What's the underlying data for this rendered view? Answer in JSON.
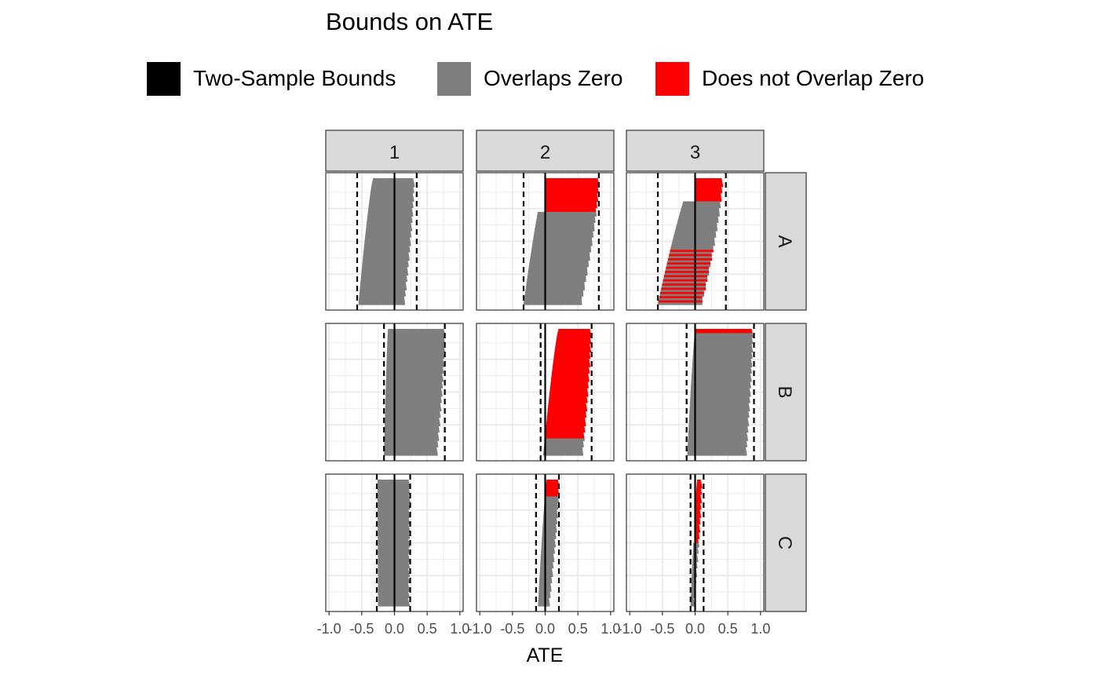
{
  "chart_data": {
    "type": "faceted-interval",
    "title": "Bounds on ATE",
    "xlabel": "ATE",
    "ylabel": "",
    "xlim": [
      -1.05,
      1.05
    ],
    "x_ticks": [
      -1.0,
      -0.5,
      0.0,
      0.5,
      1.0
    ],
    "x_tick_labels": [
      "-1.0",
      "-0.5",
      "0.0",
      "0.5",
      "1.0"
    ],
    "grid": true,
    "legend_position": "top",
    "legend": [
      {
        "label": "Two-Sample Bounds",
        "color": "#000000"
      },
      {
        "label": "Overlaps Zero",
        "color": "#7f7f7f"
      },
      {
        "label": "Does not Overlap Zero",
        "color": "#ff0000"
      }
    ],
    "col_facets": [
      "1",
      "2",
      "3"
    ],
    "row_facets": [
      "A",
      "B",
      "C"
    ],
    "panels": [
      {
        "row": "A",
        "col": "1",
        "two_sample_bounds": [
          -0.57,
          0.34
        ],
        "interval_bounds": {
          "lower_top": -0.33,
          "lower_bottom": -0.55,
          "upper_top": 0.3,
          "upper_bottom": 0.15
        },
        "share_not_overlap_zero": 0.0,
        "mixed_bottom": false
      },
      {
        "row": "A",
        "col": "2",
        "two_sample_bounds": [
          -0.33,
          0.82
        ],
        "interval_bounds": {
          "lower_top": 0.0,
          "lower_bottom": -0.33,
          "upper_top": 0.82,
          "upper_bottom": 0.55
        },
        "share_not_overlap_zero": 0.26,
        "mixed_bottom": false
      },
      {
        "row": "A",
        "col": "3",
        "two_sample_bounds": [
          -0.57,
          0.47
        ],
        "interval_bounds": {
          "lower_top": -0.05,
          "lower_bottom": -0.57,
          "upper_top": 0.42,
          "upper_bottom": 0.1
        },
        "share_not_overlap_zero": 0.18,
        "mixed_bottom": true
      },
      {
        "row": "B",
        "col": "1",
        "two_sample_bounds": [
          -0.16,
          0.77
        ],
        "interval_bounds": {
          "lower_top": -0.1,
          "lower_bottom": -0.16,
          "upper_top": 0.77,
          "upper_bottom": 0.65
        },
        "share_not_overlap_zero": 0.0,
        "mixed_bottom": false
      },
      {
        "row": "B",
        "col": "2",
        "two_sample_bounds": [
          -0.07,
          0.71
        ],
        "interval_bounds": {
          "lower_top": 0.2,
          "lower_bottom": -0.03,
          "upper_top": 0.7,
          "upper_bottom": 0.57
        },
        "share_not_overlap_zero": 0.86,
        "mixed_bottom": false
      },
      {
        "row": "B",
        "col": "3",
        "two_sample_bounds": [
          -0.13,
          0.9
        ],
        "interval_bounds": {
          "lower_top": 0.0,
          "lower_bottom": -0.12,
          "upper_top": 0.88,
          "upper_bottom": 0.78
        },
        "share_not_overlap_zero": 0.04,
        "mixed_bottom": false
      },
      {
        "row": "C",
        "col": "1",
        "two_sample_bounds": [
          -0.27,
          0.24
        ],
        "interval_bounds": {
          "lower_top": -0.26,
          "lower_bottom": -0.25,
          "upper_top": 0.23,
          "upper_bottom": 0.22
        },
        "share_not_overlap_zero": 0.0,
        "mixed_bottom": false
      },
      {
        "row": "C",
        "col": "2",
        "two_sample_bounds": [
          -0.14,
          0.21
        ],
        "interval_bounds": {
          "lower_top": 0.02,
          "lower_bottom": -0.11,
          "upper_top": 0.21,
          "upper_bottom": 0.06
        },
        "share_not_overlap_zero": 0.13,
        "mixed_bottom": false
      },
      {
        "row": "C",
        "col": "3",
        "two_sample_bounds": [
          -0.07,
          0.13
        ],
        "interval_bounds": {
          "lower_top": 0.03,
          "lower_bottom": -0.07,
          "upper_top": 0.1,
          "upper_bottom": -0.02
        },
        "share_not_overlap_zero": 0.5,
        "mixed_bottom": false
      }
    ]
  }
}
